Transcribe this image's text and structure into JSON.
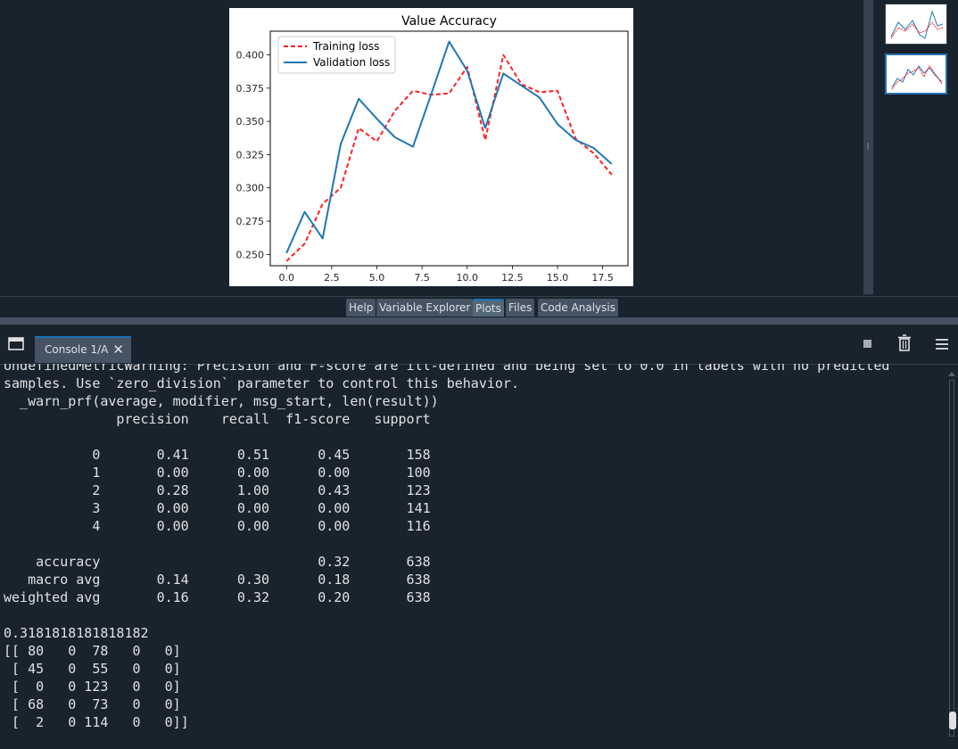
{
  "plot": {
    "chart_data": {
      "type": "line",
      "title": "Value Accuracy",
      "xlabel": "",
      "ylabel": "",
      "xlim": [
        -0.9,
        18.9
      ],
      "ylim": [
        0.2415,
        0.4178
      ],
      "x_ticks": [
        "0.0",
        "2.5",
        "5.0",
        "7.5",
        "10.0",
        "12.5",
        "15.0",
        "17.5"
      ],
      "y_ticks": [
        "0.250",
        "0.275",
        "0.300",
        "0.325",
        "0.350",
        "0.375",
        "0.400"
      ],
      "legend_position": "top-left",
      "grid": false,
      "x": [
        0,
        1,
        2,
        3,
        4,
        5,
        6,
        7,
        8,
        9,
        10,
        11,
        12,
        13,
        14,
        15,
        16,
        17,
        18
      ],
      "series": [
        {
          "name": "Training loss",
          "color": "#ff2020",
          "dash": true,
          "values": [
            0.245,
            0.258,
            0.288,
            0.3,
            0.345,
            0.335,
            0.358,
            0.373,
            0.37,
            0.371,
            0.391,
            0.336,
            0.4,
            0.378,
            0.372,
            0.373,
            0.337,
            0.326,
            0.31
          ]
        },
        {
          "name": "Validation loss",
          "color": "#1f77b4",
          "dash": false,
          "values": [
            0.251,
            0.282,
            0.262,
            0.333,
            0.367,
            0.352,
            0.338,
            0.331,
            0.37,
            0.41,
            0.388,
            0.345,
            0.386,
            0.377,
            0.368,
            0.348,
            0.336,
            0.33,
            0.318
          ]
        }
      ]
    }
  },
  "pane_tabs": [
    {
      "label": "Help",
      "active": false
    },
    {
      "label": "Variable Explorer",
      "active": false
    },
    {
      "label": "Plots",
      "active": true
    },
    {
      "label": "Files",
      "active": false
    },
    {
      "label": "Code Analysis",
      "active": false
    }
  ],
  "console": {
    "tab_label": "Console 1/A",
    "close_glyph": "✕",
    "icons": {
      "window": "window-icon",
      "stop": "stop-icon",
      "trash": "trash-icon",
      "menu": "hamburger-menu-icon"
    },
    "output": [
      "UndefinedMetricWarning: Precision and F-score are ill-defined and being set to 0.0 in labels with no predicted",
      "samples. Use `zero_division` parameter to control this behavior.",
      "  _warn_prf(average, modifier, msg_start, len(result))",
      "              precision    recall  f1-score   support",
      "",
      "           0       0.41      0.51      0.45       158",
      "           1       0.00      0.00      0.00       100",
      "           2       0.28      1.00      0.43       123",
      "           3       0.00      0.00      0.00       141",
      "           4       0.00      0.00      0.00       116",
      "",
      "    accuracy                           0.32       638",
      "   macro avg       0.14      0.30      0.18       638",
      "weighted avg       0.16      0.32      0.20       638",
      "",
      "0.3181818181818182",
      "[[ 80   0  78   0   0]",
      " [ 45   0  55   0   0]",
      " [  0   0 123   0   0]",
      " [ 68   0  73   0   0]",
      " [  2   0 114   0   0]]"
    ]
  }
}
